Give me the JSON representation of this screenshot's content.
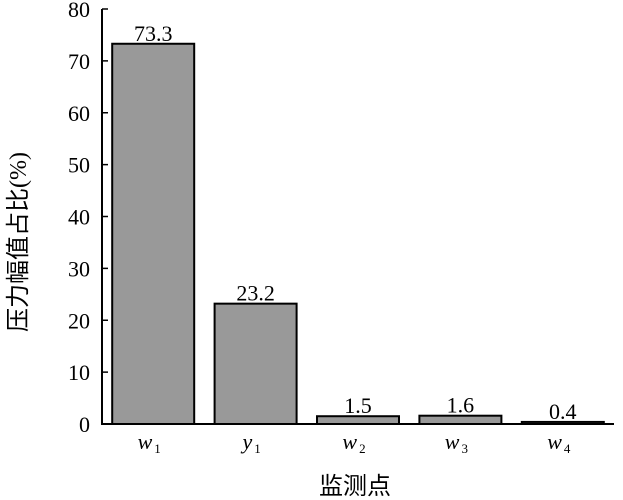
{
  "chart_data": {
    "type": "bar",
    "categories": [
      {
        "base": "w",
        "sub": "1"
      },
      {
        "base": "y",
        "sub": "1"
      },
      {
        "base": "w",
        "sub": "2"
      },
      {
        "base": "w",
        "sub": "3"
      },
      {
        "base": "w",
        "sub": "4"
      }
    ],
    "values": [
      73.3,
      23.2,
      1.5,
      1.6,
      0.4
    ],
    "value_labels": [
      "73.3",
      "23.2",
      "1.5",
      "1.6",
      "0.4"
    ],
    "xlabel": "监测点",
    "ylabel": "压力幅值占比(%)",
    "ylim": [
      0,
      80
    ],
    "yticks": [
      0,
      10,
      20,
      30,
      40,
      50,
      60,
      70,
      80
    ],
    "bar_color": "#999999",
    "bar_edge_color": "#000000",
    "grid": false
  }
}
